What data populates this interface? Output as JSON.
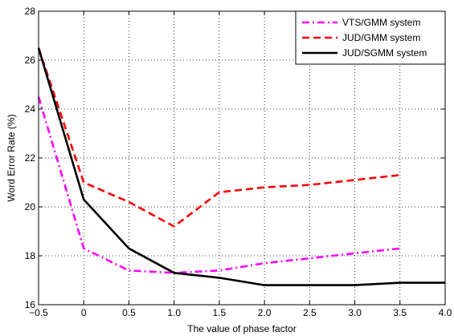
{
  "chart_data": {
    "type": "line",
    "title": "",
    "xlabel": "The value of phase factor",
    "ylabel": "Word Error Rate (%)",
    "xlim": [
      -0.5,
      4.0
    ],
    "ylim": [
      16,
      28
    ],
    "xticks": [
      -0.5,
      0,
      0.5,
      1.0,
      1.5,
      2.0,
      2.5,
      3.0,
      3.5,
      4.0
    ],
    "xtick_labels": [
      "−0.5",
      "0",
      "0.5",
      "1.0",
      "1.5",
      "2.0",
      "2.5",
      "3.0",
      "3.5",
      "4.0"
    ],
    "yticks": [
      16,
      18,
      20,
      22,
      24,
      26,
      28
    ],
    "ytick_labels": [
      "16",
      "18",
      "20",
      "22",
      "24",
      "26",
      "28"
    ],
    "grid": true,
    "legend_position": "top-right",
    "series": [
      {
        "name": "VTS/GMM system",
        "color": "#ff00ff",
        "dash": "dash-dot",
        "x": [
          -0.5,
          0,
          0.5,
          1.0,
          1.5,
          2.0,
          2.5,
          3.0,
          3.5
        ],
        "y": [
          24.5,
          18.3,
          17.4,
          17.3,
          17.4,
          17.7,
          17.9,
          18.1,
          18.3
        ]
      },
      {
        "name": "JUD/GMM system",
        "color": "#ff0000",
        "dash": "dashed",
        "x": [
          -0.5,
          0,
          0.5,
          1.0,
          1.5,
          2.0,
          2.5,
          3.0,
          3.5
        ],
        "y": [
          26.5,
          21.0,
          20.2,
          19.2,
          20.6,
          20.8,
          20.9,
          21.1,
          21.3
        ]
      },
      {
        "name": "JUD/SGMM system",
        "color": "#000000",
        "dash": "solid",
        "x": [
          -0.5,
          0,
          0.5,
          1.0,
          1.5,
          2.0,
          2.5,
          3.0,
          3.5,
          4.0
        ],
        "y": [
          26.5,
          20.3,
          18.3,
          17.3,
          17.1,
          16.8,
          16.8,
          16.8,
          16.9,
          16.9
        ]
      }
    ]
  }
}
